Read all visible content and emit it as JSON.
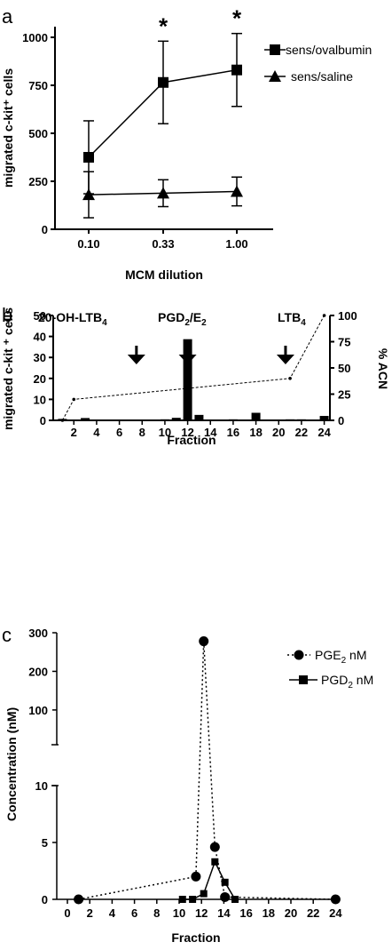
{
  "chart_data": [
    {
      "panel": "a",
      "type": "line",
      "categories": [
        "0.10",
        "0.33",
        "1.00"
      ],
      "xlabel": "MCM dilution",
      "ylabel": "migrated c-kit⁺ cells",
      "ylim": [
        0,
        1000
      ],
      "yticks": [
        "0",
        "250",
        "500",
        "750",
        "1000"
      ],
      "legend": "top-right",
      "significance": [
        "",
        "*",
        "*"
      ],
      "series": [
        {
          "name": "sens/ovalbumin",
          "marker": "square",
          "values": [
            375,
            765,
            830
          ],
          "errors": [
            190,
            215,
            190
          ]
        },
        {
          "name": "sens/saline",
          "marker": "triangle",
          "values": [
            180,
            188,
            197
          ],
          "errors": [
            120,
            70,
            75
          ]
        }
      ]
    },
    {
      "panel": "b",
      "type": "bar",
      "categories": [
        "1",
        "2",
        "3",
        "4",
        "5",
        "6",
        "7",
        "8",
        "9",
        "10",
        "11",
        "12",
        "13",
        "14",
        "15",
        "16",
        "17",
        "18",
        "19",
        "20",
        "21",
        "22",
        "23",
        "24"
      ],
      "xticks": [
        "2",
        "4",
        "6",
        "8",
        "10",
        "12",
        "14",
        "16",
        "18",
        "20",
        "22",
        "24"
      ],
      "values": [
        0.7,
        0,
        1.1,
        0,
        0,
        0,
        0,
        0,
        0,
        0.5,
        1.2,
        38.7,
        2.6,
        0.2,
        0,
        0.5,
        0.2,
        3.6,
        0.4,
        0,
        0.5,
        0.5,
        0.3,
        2.1
      ],
      "xlabel": "Fraction",
      "ylabel": "migrated c-kit ⁺ cells",
      "ylim": [
        0,
        50
      ],
      "yticks": [
        "0",
        "10",
        "20",
        "30",
        "40",
        "50"
      ],
      "y2label": "% ACN",
      "y2lim": [
        0,
        100
      ],
      "y2ticks": [
        "0",
        "25",
        "50",
        "75",
        "100"
      ],
      "gradient": {
        "x": [
          1,
          2,
          21,
          24
        ],
        "y": [
          0,
          20,
          40,
          100
        ]
      },
      "annotations": [
        {
          "base": "20-OH-LTB",
          "sub": "4",
          "rest": "",
          "sub2": "",
          "rest2": "",
          "arrow_at": 7.5
        },
        {
          "base": "PGD",
          "sub": "2",
          "rest": "/E",
          "sub2": "2",
          "rest2": "",
          "arrow_at": 12
        },
        {
          "base": "LTB",
          "sub": "4",
          "rest": "",
          "sub2": "",
          "rest2": "",
          "arrow_at": 20.6
        }
      ]
    },
    {
      "panel": "c",
      "type": "line",
      "xlabel": "Fraction",
      "ylabel": "Concentration (nM)",
      "xticks": [
        "0",
        "2",
        "4",
        "6",
        "8",
        "10",
        "12",
        "14",
        "16",
        "18",
        "20",
        "22",
        "24"
      ],
      "yticks_lower": [
        "0",
        "5",
        "10"
      ],
      "yticks_upper": [
        "100",
        "200",
        "300"
      ],
      "axis_break": true,
      "legend": "top-right",
      "series": [
        {
          "name": "PGE",
          "name_sub": "2",
          "name_rest": " nM",
          "marker": "circle",
          "line": "dotted",
          "x": [
            1,
            11.5,
            12.2,
            13.2,
            14.1,
            24
          ],
          "y": [
            0,
            2,
            278,
            4.6,
            0.2,
            0
          ]
        },
        {
          "name": "PGD",
          "name_sub": "2",
          "name_rest": " nM",
          "marker": "square",
          "line": "solid",
          "x": [
            10.3,
            11.2,
            12.2,
            13.2,
            14.1,
            15
          ],
          "y": [
            0,
            0,
            0.5,
            3.3,
            1.5,
            0
          ]
        }
      ]
    }
  ],
  "panels": {
    "a": "a",
    "b": "b",
    "c": "c"
  },
  "colors": {
    "ink": "#000000",
    "background": "#ffffff"
  }
}
